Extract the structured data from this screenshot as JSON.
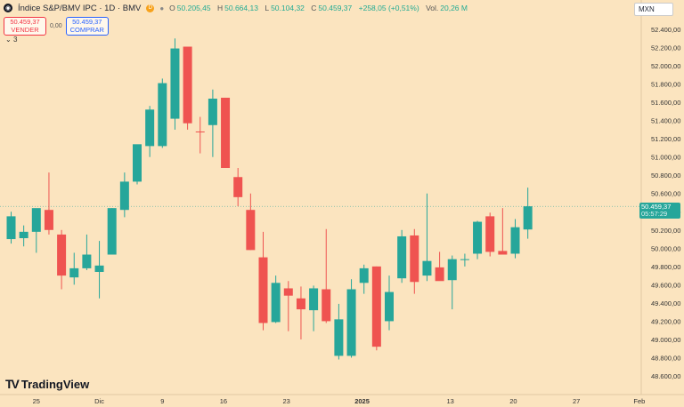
{
  "header": {
    "symbol_title": "Índice S&P/BMV IPC · 1D · BMV",
    "d_badge": "D",
    "open_label": "O",
    "open": "50.205,45",
    "high_label": "H",
    "high": "50.664,13",
    "low_label": "L",
    "low": "50.104,32",
    "close_label": "C",
    "close": "50.459,37",
    "change": "+258,05 (+0,51%)",
    "vol_label": "Vol.",
    "vol": "20,26 M"
  },
  "trade": {
    "sell_price": "50.459,37",
    "sell_label": "VENDER",
    "spread": "0,00",
    "buy_price": "50.459,37",
    "buy_label": "COMPRAR"
  },
  "indicators_toggle": "3",
  "currency": "MXN",
  "last_price": {
    "value": "50.459,37",
    "countdown": "05:57:29",
    "color": "#26a69a"
  },
  "brand": "TradingView",
  "colors": {
    "up": "#26a69a",
    "down": "#ef5350",
    "background": "#fbe4bf"
  },
  "chart_data": {
    "type": "candlestick",
    "title": "Índice S&P/BMV IPC · 1D · BMV",
    "ylim": [
      48500,
      52600
    ],
    "y_ticks": [
      48600,
      48800,
      49000,
      49200,
      49400,
      49600,
      49800,
      50000,
      50200,
      50400,
      50600,
      50800,
      51000,
      51200,
      51400,
      51600,
      51800,
      52000,
      52200,
      52400
    ],
    "y_tick_labels": [
      "48.600,00",
      "48.800,00",
      "49.000,00",
      "49.200,00",
      "49.400,00",
      "49.600,00",
      "49.800,00",
      "50.000,00",
      "50.200,00",
      "50.400,00",
      "50.600,00",
      "50.800,00",
      "51.000,00",
      "51.200,00",
      "51.400,00",
      "51.600,00",
      "51.800,00",
      "52.000,00",
      "52.200,00",
      "52.400,00"
    ],
    "x_tick_labels": [
      "25",
      "Dic",
      "9",
      "16",
      "23",
      "2025",
      "13",
      "20",
      "27",
      "Feb"
    ],
    "x_tick_index": [
      2,
      7,
      12,
      16.85,
      21.85,
      27.85,
      34.85,
      39.85,
      44.85,
      49.85
    ],
    "candles": [
      {
        "o": 50100,
        "h": 50400,
        "l": 50050,
        "c": 50350
      },
      {
        "o": 50110,
        "h": 50250,
        "l": 50020,
        "c": 50180
      },
      {
        "o": 50180,
        "h": 50400,
        "l": 49950,
        "c": 50440
      },
      {
        "o": 50420,
        "h": 50830,
        "l": 50150,
        "c": 50200
      },
      {
        "o": 50150,
        "h": 50200,
        "l": 49550,
        "c": 49700
      },
      {
        "o": 49680,
        "h": 49950,
        "l": 49600,
        "c": 49780
      },
      {
        "o": 49780,
        "h": 50150,
        "l": 49760,
        "c": 49930
      },
      {
        "o": 49740,
        "h": 50080,
        "l": 49450,
        "c": 49810
      },
      {
        "o": 49930,
        "h": 50440,
        "l": 49930,
        "c": 50440
      },
      {
        "o": 50420,
        "h": 50830,
        "l": 50340,
        "c": 50730
      },
      {
        "o": 50730,
        "h": 51100,
        "l": 50700,
        "c": 51140
      },
      {
        "o": 51120,
        "h": 51560,
        "l": 51000,
        "c": 51520
      },
      {
        "o": 51120,
        "h": 51860,
        "l": 51100,
        "c": 51810
      },
      {
        "o": 51420,
        "h": 52300,
        "l": 51300,
        "c": 52190
      },
      {
        "o": 52210,
        "h": 52210,
        "l": 51300,
        "c": 51370
      },
      {
        "o": 51280,
        "h": 51440,
        "l": 51040,
        "c": 51270
      },
      {
        "o": 51350,
        "h": 51740,
        "l": 51000,
        "c": 51640
      },
      {
        "o": 51650,
        "h": 51650,
        "l": 50880,
        "c": 50880
      },
      {
        "o": 50780,
        "h": 50880,
        "l": 50460,
        "c": 50560
      },
      {
        "o": 50420,
        "h": 50600,
        "l": 49980,
        "c": 49980
      },
      {
        "o": 49900,
        "h": 50180,
        "l": 49100,
        "c": 49180
      },
      {
        "o": 49190,
        "h": 49700,
        "l": 49180,
        "c": 49620
      },
      {
        "o": 49560,
        "h": 49640,
        "l": 49090,
        "c": 49480
      },
      {
        "o": 49450,
        "h": 49580,
        "l": 49000,
        "c": 49330
      },
      {
        "o": 49320,
        "h": 49590,
        "l": 49090,
        "c": 49560
      },
      {
        "o": 49550,
        "h": 50210,
        "l": 49180,
        "c": 49200
      },
      {
        "o": 48820,
        "h": 49390,
        "l": 48780,
        "c": 49220
      },
      {
        "o": 48820,
        "h": 49660,
        "l": 48800,
        "c": 49550
      },
      {
        "o": 49620,
        "h": 49820,
        "l": 49500,
        "c": 49780
      },
      {
        "o": 49800,
        "h": 49800,
        "l": 48880,
        "c": 48920
      },
      {
        "o": 49200,
        "h": 49700,
        "l": 49100,
        "c": 49520
      },
      {
        "o": 49670,
        "h": 50200,
        "l": 49620,
        "c": 50130
      },
      {
        "o": 50140,
        "h": 50210,
        "l": 49500,
        "c": 49630
      },
      {
        "o": 49700,
        "h": 50600,
        "l": 49640,
        "c": 49860
      },
      {
        "o": 49790,
        "h": 49960,
        "l": 49680,
        "c": 49640
      },
      {
        "o": 49650,
        "h": 49920,
        "l": 49330,
        "c": 49880
      },
      {
        "o": 49870,
        "h": 49940,
        "l": 49800,
        "c": 49880
      },
      {
        "o": 49940,
        "h": 50300,
        "l": 49880,
        "c": 50290
      },
      {
        "o": 50350,
        "h": 50390,
        "l": 49910,
        "c": 49960
      },
      {
        "o": 49970,
        "h": 50440,
        "l": 49940,
        "c": 49930
      },
      {
        "o": 49940,
        "h": 50320,
        "l": 49890,
        "c": 50230
      },
      {
        "o": 50205.45,
        "h": 50664.13,
        "l": 50104.32,
        "c": 50459.37
      }
    ]
  }
}
